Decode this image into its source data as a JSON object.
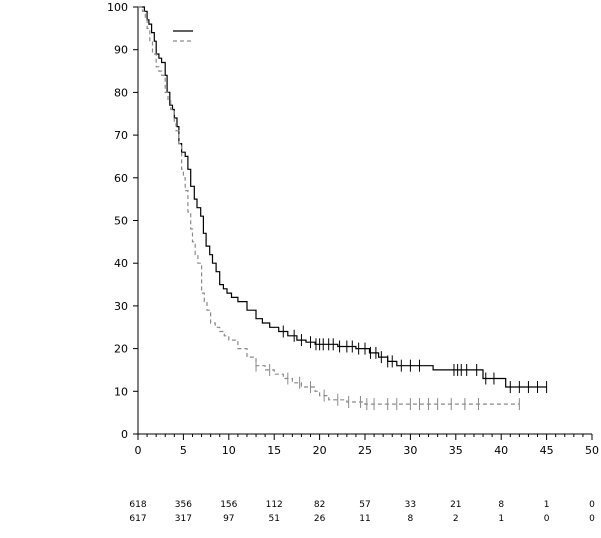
{
  "chart_data": {
    "type": "line",
    "subtype": "kaplan-meier",
    "title": "",
    "xlabel": "",
    "ylabel": "",
    "xlim": [
      0,
      50
    ],
    "ylim": [
      0,
      100
    ],
    "xticks": [
      0,
      5,
      10,
      15,
      20,
      25,
      30,
      35,
      40,
      45,
      50
    ],
    "yticks": [
      0,
      10,
      20,
      30,
      40,
      50,
      60,
      70,
      80,
      90,
      100
    ],
    "grid": false,
    "legend": {
      "placement": "top-left",
      "entries": [
        {
          "name": "",
          "style": "solid",
          "color": "#000000"
        },
        {
          "name": "",
          "style": "dashed",
          "color": "#8a8a8a"
        }
      ]
    },
    "series": [
      {
        "style": "solid",
        "color": "#000000",
        "points": [
          [
            0,
            100
          ],
          [
            0.5,
            100
          ],
          [
            0.7,
            99
          ],
          [
            1.0,
            97
          ],
          [
            1.2,
            96
          ],
          [
            1.5,
            94
          ],
          [
            1.8,
            92
          ],
          [
            2.0,
            89
          ],
          [
            2.3,
            88
          ],
          [
            2.6,
            87
          ],
          [
            3.0,
            84
          ],
          [
            3.2,
            80
          ],
          [
            3.5,
            77
          ],
          [
            3.8,
            76
          ],
          [
            4.0,
            74
          ],
          [
            4.3,
            72
          ],
          [
            4.5,
            68
          ],
          [
            4.8,
            66
          ],
          [
            5.2,
            65
          ],
          [
            5.5,
            62
          ],
          [
            5.8,
            58
          ],
          [
            6.2,
            55
          ],
          [
            6.5,
            53
          ],
          [
            6.9,
            51
          ],
          [
            7.2,
            47
          ],
          [
            7.5,
            44
          ],
          [
            7.9,
            42
          ],
          [
            8.2,
            40
          ],
          [
            8.6,
            38
          ],
          [
            9.0,
            35
          ],
          [
            9.4,
            34
          ],
          [
            9.8,
            33
          ],
          [
            10.3,
            32
          ],
          [
            11.0,
            31
          ],
          [
            12.0,
            29
          ],
          [
            13.0,
            27
          ],
          [
            13.7,
            26
          ],
          [
            14.5,
            25
          ],
          [
            15.5,
            24
          ],
          [
            16.5,
            23
          ],
          [
            17.5,
            22
          ],
          [
            18.5,
            21.5
          ],
          [
            19.5,
            21
          ],
          [
            20.5,
            21
          ],
          [
            22.0,
            20.5
          ],
          [
            24.0,
            20
          ],
          [
            25.5,
            19
          ],
          [
            26.5,
            18
          ],
          [
            27.5,
            17
          ],
          [
            28.5,
            16
          ],
          [
            32.0,
            16
          ],
          [
            32.5,
            15
          ],
          [
            37.0,
            15
          ],
          [
            38.0,
            13
          ],
          [
            40.0,
            13
          ],
          [
            40.5,
            11
          ],
          [
            45.0,
            11
          ]
        ],
        "censor_times": [
          16.0,
          17.2,
          18.0,
          19.0,
          19.6,
          20.0,
          20.4,
          21.0,
          21.5,
          22.2,
          23.0,
          23.6,
          24.3,
          25.0,
          25.6,
          26.2,
          26.8,
          27.5,
          28.0,
          29.0,
          30.0,
          31.0,
          34.8,
          35.2,
          35.6,
          36.2,
          37.3,
          38.3,
          39.2,
          41.0,
          42.0,
          43.0,
          44.0,
          45.0
        ]
      },
      {
        "style": "dashed",
        "color": "#8a8a8a",
        "points": [
          [
            0,
            100
          ],
          [
            0.5,
            99
          ],
          [
            0.8,
            97
          ],
          [
            1.0,
            95
          ],
          [
            1.3,
            92
          ],
          [
            1.6,
            89
          ],
          [
            2.0,
            86
          ],
          [
            2.3,
            85
          ],
          [
            2.6,
            84
          ],
          [
            3.0,
            80
          ],
          [
            3.3,
            78
          ],
          [
            3.6,
            76
          ],
          [
            4.0,
            73
          ],
          [
            4.2,
            71
          ],
          [
            4.5,
            68
          ],
          [
            4.8,
            62
          ],
          [
            5.0,
            60
          ],
          [
            5.2,
            57
          ],
          [
            5.5,
            52
          ],
          [
            5.8,
            48
          ],
          [
            6.0,
            45
          ],
          [
            6.3,
            42
          ],
          [
            6.6,
            40
          ],
          [
            7.0,
            33
          ],
          [
            7.3,
            31
          ],
          [
            7.6,
            29
          ],
          [
            8.0,
            26
          ],
          [
            8.5,
            25
          ],
          [
            9.0,
            24
          ],
          [
            9.5,
            23
          ],
          [
            10.0,
            22
          ],
          [
            11.0,
            20
          ],
          [
            12.0,
            18
          ],
          [
            13.0,
            16
          ],
          [
            14.0,
            15
          ],
          [
            15.0,
            14
          ],
          [
            16.0,
            13
          ],
          [
            17.0,
            12
          ],
          [
            18.0,
            11
          ],
          [
            19.5,
            10
          ],
          [
            20.0,
            9
          ],
          [
            21.0,
            8
          ],
          [
            23.0,
            7.5
          ],
          [
            25.0,
            7
          ],
          [
            42.0,
            7
          ]
        ],
        "censor_times": [
          13.0,
          14.5,
          16.5,
          17.8,
          19.0,
          20.5,
          22.0,
          23.2,
          24.5,
          25.2,
          26.0,
          27.5,
          28.5,
          30.0,
          31.0,
          32.0,
          33.0,
          34.5,
          36.0,
          37.5,
          42.0
        ]
      }
    ],
    "numbers_at_risk": {
      "times": [
        0,
        5,
        10,
        15,
        20,
        25,
        30,
        35,
        40,
        45,
        50
      ],
      "rows": [
        {
          "values": [
            618,
            356,
            156,
            112,
            82,
            57,
            33,
            21,
            8,
            1,
            0
          ]
        },
        {
          "values": [
            617,
            317,
            97,
            51,
            26,
            11,
            8,
            2,
            1,
            0,
            0
          ]
        }
      ]
    }
  }
}
